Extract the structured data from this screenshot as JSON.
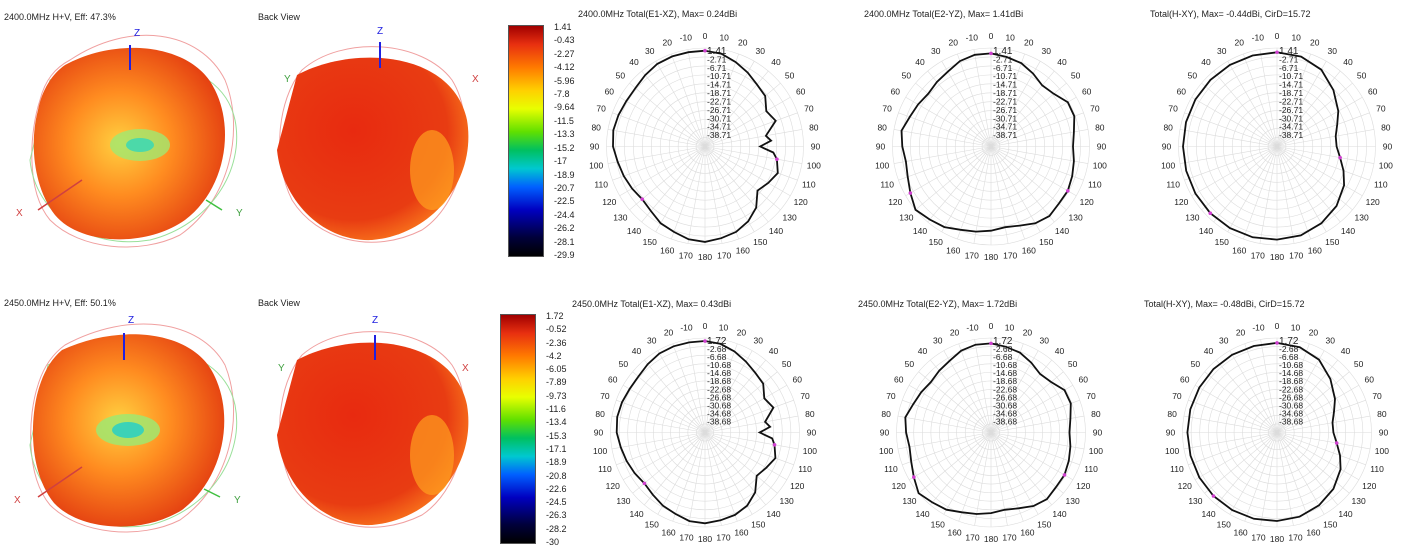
{
  "rows": [
    {
      "pattern3d": {
        "front_title": "2400.0MHz H+V, Eff: 47.3%",
        "back_title": "Back View"
      },
      "axes": {
        "z": "Z",
        "x": "X",
        "y": "Y"
      },
      "colorbar": [
        "1.41",
        "-0.43",
        "-2.27",
        "-4.12",
        "-5.96",
        "-7.8",
        "-9.64",
        "-11.5",
        "-13.3",
        "-15.2",
        "-17",
        "-18.9",
        "-20.7",
        "-22.5",
        "-24.4",
        "-26.2",
        "-28.1",
        "-29.9"
      ],
      "polars": [
        {
          "title": "2400.0MHz Total(E1-XZ), Max= 0.24dBi"
        },
        {
          "title": "2400.0MHz Total(E2-YZ), Max= 1.41dBi"
        },
        {
          "title": "Total(H-XY), Max= -0.44dBi, CirD=15.72"
        }
      ]
    },
    {
      "pattern3d": {
        "front_title": "2450.0MHz H+V, Eff: 50.1%",
        "back_title": "Back View"
      },
      "axes": {
        "z": "Z",
        "x": "X",
        "y": "Y"
      },
      "colorbar": [
        "1.72",
        "-0.52",
        "-2.36",
        "-4.2",
        "-6.05",
        "-7.89",
        "-9.73",
        "-11.6",
        "-13.4",
        "-15.3",
        "-17.1",
        "-18.9",
        "-20.8",
        "-22.6",
        "-24.5",
        "-26.3",
        "-28.2",
        "-30"
      ],
      "polars": [
        {
          "title": "2450.0MHz Total(E1-XZ), Max= 0.43dBi"
        },
        {
          "title": "2450.0MHz Total(E2-YZ), Max= 1.72dBi"
        },
        {
          "title": "Total(H-XY), Max= -0.48dBi, CirD=15.72"
        }
      ]
    }
  ],
  "chart_data": [
    {
      "type": "polar",
      "title": "2400.0MHz Total(E1-XZ), Max= 0.24dBi",
      "angle_ticks": [
        "0",
        "10",
        "20",
        "30",
        "40",
        "50",
        "60",
        "70",
        "80",
        "90",
        "100",
        "110",
        "120",
        "130",
        "140",
        "150",
        "160",
        "170",
        "180",
        "170",
        "160",
        "150",
        "140",
        "130",
        "120",
        "110",
        "100",
        "90",
        "80",
        "70",
        "60",
        "50",
        "40",
        "30",
        "20",
        "-10"
      ],
      "radial_labels": [
        "1.41",
        "-2.71",
        "-6.71",
        "-10.71",
        "-14.71",
        "-18.71",
        "-22.71",
        "-26.71",
        "-30.71",
        "-34.71",
        "-38.71"
      ],
      "rlim": [
        -42.71,
        1.41
      ],
      "series": [
        {
          "theta": [
            0,
            10,
            20,
            30,
            40,
            50,
            60,
            70,
            80,
            85,
            90,
            95,
            100,
            110,
            120,
            130,
            140,
            150,
            160,
            170,
            180,
            190,
            200,
            210,
            220,
            230,
            240,
            250,
            260,
            270,
            280,
            290,
            300,
            310,
            320,
            330,
            340,
            350
          ],
          "r": [
            0.2,
            -0.5,
            -2.5,
            -4.5,
            -6.5,
            -7.5,
            -11,
            -9,
            -15,
            -13,
            -18,
            -12,
            -10,
            -8,
            -10,
            -12,
            -7,
            -4,
            -2,
            -1,
            0,
            -0.5,
            -2,
            -3,
            -5,
            -6,
            -5,
            -4,
            -3,
            -1.5,
            -1,
            -1.5,
            -2,
            -2,
            -1,
            0,
            0.24,
            0.2
          ]
        }
      ]
    },
    {
      "type": "polar",
      "title": "2400.0MHz Total(E2-YZ), Max= 1.41dBi",
      "angle_ticks": [
        "0",
        "10",
        "20",
        "30",
        "40",
        "50",
        "60",
        "70",
        "80",
        "90",
        "100",
        "110",
        "120",
        "130",
        "140",
        "150",
        "160",
        "170",
        "180",
        "170",
        "160",
        "150",
        "140",
        "130",
        "120",
        "110",
        "100",
        "90",
        "80",
        "70",
        "60",
        "50",
        "40",
        "30",
        "20",
        "-10"
      ],
      "radial_labels": [
        "1.41",
        "-2.71",
        "-6.71",
        "-10.71",
        "-14.71",
        "-18.71",
        "-22.71",
        "-26.71",
        "-30.71",
        "-34.71",
        "-38.71"
      ],
      "rlim": [
        -42.71,
        1.41
      ],
      "series": [
        {
          "theta": [
            0,
            10,
            20,
            30,
            40,
            50,
            60,
            70,
            80,
            90,
            100,
            110,
            120,
            130,
            140,
            150,
            160,
            170,
            180,
            190,
            200,
            210,
            220,
            230,
            240,
            250,
            260,
            270,
            280,
            290,
            300,
            310,
            320,
            330,
            340,
            350
          ],
          "r": [
            -1,
            -2,
            -3,
            -5,
            -7,
            -6,
            -3,
            -3,
            -5,
            -6,
            -5,
            -4,
            -3,
            -3,
            -2,
            -3,
            -5,
            -6,
            -5,
            -4,
            -3,
            -1,
            0,
            1.41,
            -1,
            -3,
            -4,
            -3,
            -2,
            -4,
            -5,
            -6,
            -5,
            -4,
            -2,
            -1
          ]
        }
      ]
    },
    {
      "type": "polar",
      "title": "Total(H-XY), Max= -0.44dBi, CirD=15.72",
      "angle_ticks": [
        "0",
        "10",
        "20",
        "30",
        "40",
        "50",
        "60",
        "70",
        "80",
        "90",
        "100",
        "110",
        "120",
        "130",
        "140",
        "150",
        "160",
        "170",
        "180",
        "170",
        "160",
        "150",
        "140",
        "130",
        "120",
        "110",
        "100",
        "90",
        "80",
        "70",
        "60",
        "50",
        "40",
        "30",
        "20",
        "-10"
      ],
      "radial_labels": [
        "1.41",
        "-2.71",
        "-6.71",
        "-10.71",
        "-14.71",
        "-18.71",
        "-22.71",
        "-26.71",
        "-30.71",
        "-34.71",
        "-38.71"
      ],
      "rlim": [
        -42.71,
        1.41
      ],
      "series": [
        {
          "theta": [
            0,
            15,
            30,
            45,
            60,
            70,
            80,
            90,
            100,
            110,
            120,
            135,
            150,
            165,
            180,
            195,
            210,
            225,
            240,
            255,
            270,
            285,
            300,
            315,
            330,
            345
          ],
          "r": [
            -0.5,
            -1,
            -3,
            -7,
            -11,
            -14,
            -16,
            -16,
            -14,
            -11,
            -8,
            -5,
            -3,
            -1.5,
            -1,
            -0.6,
            -0.5,
            -0.44,
            -0.5,
            -0.6,
            -0.6,
            -0.5,
            -0.5,
            -0.5,
            -0.5,
            -0.5
          ]
        }
      ]
    },
    {
      "type": "polar",
      "title": "2450.0MHz Total(E1-XZ), Max= 0.43dBi",
      "angle_ticks": [
        "0",
        "10",
        "20",
        "30",
        "40",
        "50",
        "60",
        "70",
        "80",
        "90",
        "100",
        "110",
        "120",
        "130",
        "140",
        "150",
        "160",
        "170",
        "180",
        "170",
        "160",
        "150",
        "140",
        "130",
        "120",
        "110",
        "100",
        "90",
        "80",
        "70",
        "60",
        "50",
        "40",
        "30",
        "20",
        "-10"
      ],
      "radial_labels": [
        "1.72",
        "-2.68",
        "-6.68",
        "-10.68",
        "-14.68",
        "-18.68",
        "-22.68",
        "-26.68",
        "-30.68",
        "-34.68",
        "-38.68"
      ],
      "rlim": [
        -42.68,
        1.72
      ],
      "series": [
        {
          "theta": [
            0,
            10,
            20,
            30,
            40,
            50,
            60,
            70,
            80,
            85,
            90,
            95,
            100,
            110,
            120,
            130,
            140,
            150,
            160,
            170,
            180,
            190,
            200,
            210,
            220,
            230,
            240,
            250,
            260,
            270,
            280,
            290,
            300,
            310,
            320,
            330,
            340,
            350
          ],
          "r": [
            0.3,
            -0.4,
            -2.2,
            -4.2,
            -6,
            -7,
            -10.5,
            -8.5,
            -14,
            -12,
            -17,
            -11,
            -9.5,
            -7.5,
            -9.5,
            -11,
            -6,
            -3,
            -1.5,
            -0.8,
            0,
            -0.4,
            -2,
            -3,
            -4.5,
            -5.5,
            -4.5,
            -3.5,
            -2.5,
            -1.2,
            -0.8,
            -1.2,
            -1.8,
            -1.8,
            -0.8,
            0.2,
            0.43,
            0.3
          ]
        }
      ]
    },
    {
      "type": "polar",
      "title": "2450.0MHz Total(E2-YZ), Max= 1.72dBi",
      "angle_ticks": [
        "0",
        "10",
        "20",
        "30",
        "40",
        "50",
        "60",
        "70",
        "80",
        "90",
        "100",
        "110",
        "120",
        "130",
        "140",
        "150",
        "160",
        "170",
        "180",
        "170",
        "160",
        "150",
        "140",
        "130",
        "120",
        "110",
        "100",
        "90",
        "80",
        "70",
        "60",
        "50",
        "40",
        "30",
        "20",
        "-10"
      ],
      "radial_labels": [
        "1.72",
        "-2.68",
        "-6.68",
        "-10.68",
        "-14.68",
        "-18.68",
        "-22.68",
        "-26.68",
        "-30.68",
        "-34.68",
        "-38.68"
      ],
      "rlim": [
        -42.68,
        1.72
      ],
      "series": [
        {
          "theta": [
            0,
            10,
            20,
            30,
            40,
            50,
            60,
            70,
            80,
            90,
            100,
            110,
            120,
            130,
            140,
            150,
            160,
            170,
            180,
            190,
            200,
            210,
            220,
            230,
            240,
            250,
            260,
            270,
            280,
            290,
            300,
            310,
            320,
            330,
            340,
            350
          ],
          "r": [
            -0.8,
            -1.8,
            -2.8,
            -4.8,
            -6.8,
            -5.8,
            -2.8,
            -2.8,
            -4.8,
            -5.8,
            -4.8,
            -3.8,
            -2.8,
            -2.8,
            -1.8,
            -2.8,
            -4.8,
            -5.8,
            -4.8,
            -3.8,
            -2.8,
            -0.8,
            0.2,
            1.72,
            -0.8,
            -2.8,
            -3.8,
            -2.8,
            -1.8,
            -3.8,
            -4.8,
            -5.8,
            -4.8,
            -3.8,
            -1.8,
            -0.8
          ]
        }
      ]
    },
    {
      "type": "polar",
      "title": "Total(H-XY), Max= -0.48dBi, CirD=15.72",
      "angle_ticks": [
        "0",
        "10",
        "20",
        "30",
        "40",
        "50",
        "60",
        "70",
        "80",
        "90",
        "100",
        "110",
        "120",
        "130",
        "140",
        "150",
        "160",
        "170",
        "180",
        "170",
        "160",
        "150",
        "140",
        "130",
        "120",
        "110",
        "100",
        "90",
        "80",
        "70",
        "60",
        "50",
        "40",
        "30",
        "20",
        "-10"
      ],
      "radial_labels": [
        "1.72",
        "-2.68",
        "-6.68",
        "-10.68",
        "-14.68",
        "-18.68",
        "-22.68",
        "-26.68",
        "-30.68",
        "-34.68",
        "-38.68"
      ],
      "rlim": [
        -42.68,
        1.72
      ],
      "series": [
        {
          "theta": [
            0,
            15,
            30,
            45,
            60,
            70,
            80,
            90,
            100,
            110,
            120,
            135,
            150,
            165,
            180,
            195,
            210,
            225,
            240,
            255,
            270,
            285,
            300,
            315,
            330,
            345
          ],
          "r": [
            -0.6,
            -1.2,
            -3.2,
            -7.2,
            -11.2,
            -14.2,
            -16.2,
            -16.2,
            -14.2,
            -11.2,
            -8.2,
            -5.2,
            -3.2,
            -1.7,
            -1.1,
            -0.7,
            -0.6,
            -0.48,
            -0.5,
            -0.6,
            -0.6,
            -0.5,
            -0.5,
            -0.5,
            -0.5,
            -0.6
          ]
        }
      ]
    }
  ]
}
